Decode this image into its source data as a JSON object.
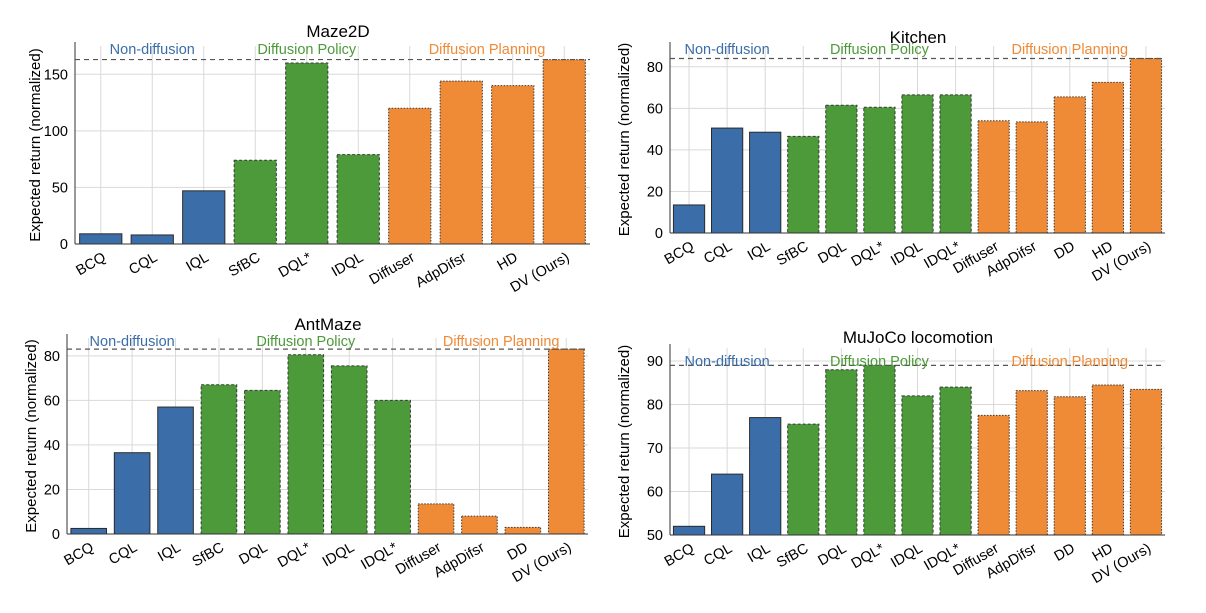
{
  "colors": {
    "non_diffusion": "#3b6ea8",
    "diffusion_policy": "#4c9a3a",
    "diffusion_planning": "#ef8a37"
  },
  "chart_data": [
    {
      "type": "bar",
      "title": "Maze2D",
      "ylabel": "Expected return (normalized)",
      "ylim": [
        0,
        175
      ],
      "yticks": [
        0,
        50,
        100,
        150
      ],
      "reference_line": 163,
      "grid": true,
      "categories": [
        "BCQ",
        "CQL",
        "IQL",
        "SfBC",
        "DQL*",
        "IDQL",
        "Diffuser",
        "AdpDifsr",
        "HD",
        "DV (Ours)"
      ],
      "values": [
        9,
        8,
        47,
        74,
        160,
        79,
        120,
        144,
        140,
        163
      ],
      "groups": [
        "non_diffusion",
        "non_diffusion",
        "non_diffusion",
        "diffusion_policy",
        "diffusion_policy",
        "diffusion_policy",
        "diffusion_planning",
        "diffusion_planning",
        "diffusion_planning",
        "diffusion_planning"
      ],
      "group_labels": [
        {
          "key": "non_diffusion",
          "text": "Non-diffusion"
        },
        {
          "key": "diffusion_policy",
          "text": "Diffusion Policy"
        },
        {
          "key": "diffusion_planning",
          "text": "Diffusion Planning"
        }
      ]
    },
    {
      "type": "bar",
      "title": "Kitchen",
      "ylabel": "Expected return (normalized)",
      "ylim": [
        0,
        90
      ],
      "yticks": [
        0,
        20,
        40,
        60,
        80
      ],
      "reference_line": 84,
      "grid": true,
      "categories": [
        "BCQ",
        "CQL",
        "IQL",
        "SfBC",
        "DQL",
        "DQL*",
        "IDQL",
        "IDQL*",
        "Diffuser",
        "AdpDifsr",
        "DD",
        "HD",
        "DV (Ours)"
      ],
      "values": [
        13.5,
        50.5,
        48.5,
        46.5,
        61.5,
        60.5,
        66.5,
        66.5,
        54,
        53.5,
        65.5,
        72.5,
        84
      ],
      "groups": [
        "non_diffusion",
        "non_diffusion",
        "non_diffusion",
        "diffusion_policy",
        "diffusion_policy",
        "diffusion_policy",
        "diffusion_policy",
        "diffusion_policy",
        "diffusion_planning",
        "diffusion_planning",
        "diffusion_planning",
        "diffusion_planning",
        "diffusion_planning"
      ],
      "group_labels": [
        {
          "key": "non_diffusion",
          "text": "Non-diffusion"
        },
        {
          "key": "diffusion_policy",
          "text": "Diffusion Policy"
        },
        {
          "key": "diffusion_planning",
          "text": "Diffusion Planning"
        }
      ]
    },
    {
      "type": "bar",
      "title": "AntMaze",
      "ylabel": "Expected return (normalized)",
      "ylim": [
        0,
        88
      ],
      "yticks": [
        0,
        20,
        40,
        60,
        80
      ],
      "reference_line": 83,
      "grid": true,
      "categories": [
        "BCQ",
        "CQL",
        "IQL",
        "SfBC",
        "DQL",
        "DQL*",
        "IDQL",
        "IDQL*",
        "Diffuser",
        "AdpDifsr",
        "DD",
        "DV (Ours)"
      ],
      "values": [
        2.5,
        36.5,
        57,
        67,
        64.5,
        80.5,
        75.5,
        60,
        13.5,
        8,
        3,
        83
      ],
      "groups": [
        "non_diffusion",
        "non_diffusion",
        "non_diffusion",
        "diffusion_policy",
        "diffusion_policy",
        "diffusion_policy",
        "diffusion_policy",
        "diffusion_policy",
        "diffusion_planning",
        "diffusion_planning",
        "diffusion_planning",
        "diffusion_planning"
      ],
      "group_labels": [
        {
          "key": "non_diffusion",
          "text": "Non-diffusion"
        },
        {
          "key": "diffusion_policy",
          "text": "Diffusion Policy"
        },
        {
          "key": "diffusion_planning",
          "text": "Diffusion Planning"
        }
      ]
    },
    {
      "type": "bar",
      "title": "MuJoCo locomotion",
      "ylabel": "Expected return (normalized)",
      "ylim": [
        50,
        93
      ],
      "yticks": [
        50,
        60,
        70,
        80,
        90
      ],
      "reference_line": 89,
      "grid": true,
      "categories": [
        "BCQ",
        "CQL",
        "IQL",
        "SfBC",
        "DQL",
        "DQL*",
        "IDQL",
        "IDQL*",
        "Diffuser",
        "AdpDifsr",
        "DD",
        "HD",
        "DV (Ours)"
      ],
      "values": [
        52,
        64,
        77,
        75.5,
        88,
        89,
        82,
        84,
        77.5,
        83.2,
        81.8,
        84.5,
        83.5
      ],
      "groups": [
        "non_diffusion",
        "non_diffusion",
        "non_diffusion",
        "diffusion_policy",
        "diffusion_policy",
        "diffusion_policy",
        "diffusion_policy",
        "diffusion_policy",
        "diffusion_planning",
        "diffusion_planning",
        "diffusion_planning",
        "diffusion_planning",
        "diffusion_planning"
      ],
      "group_labels": [
        {
          "key": "non_diffusion",
          "text": "Non-diffusion"
        },
        {
          "key": "diffusion_policy",
          "text": "Diffusion Policy"
        },
        {
          "key": "diffusion_planning",
          "text": "Diffusion Planning"
        }
      ]
    }
  ]
}
